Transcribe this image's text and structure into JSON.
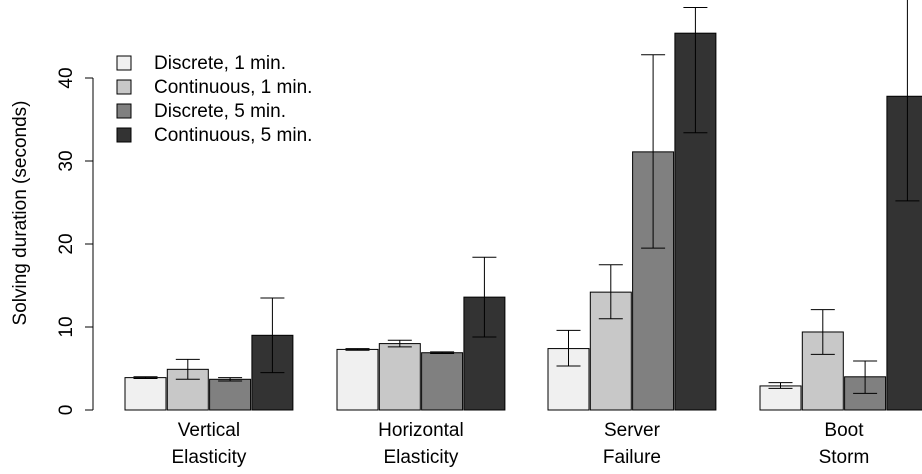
{
  "chart_data": {
    "type": "bar",
    "title": "",
    "ylabel": "Solving duration (seconds)",
    "xlabel": "",
    "ylim": [
      0,
      47
    ],
    "yticks": [
      0,
      10,
      20,
      30,
      40
    ],
    "grid": false,
    "legend_position": "top-left",
    "categories": [
      [
        "Vertical",
        "Elasticity"
      ],
      [
        "Horizontal",
        "Elasticity"
      ],
      [
        "Server",
        "Failure"
      ],
      [
        "Boot",
        "Storm"
      ]
    ],
    "series": [
      {
        "name": "Discrete, 1 min.",
        "color": "#f0f0f0",
        "values": [
          3.9,
          7.3,
          7.4,
          2.9
        ],
        "errors": [
          [
            3.8,
            4.0
          ],
          [
            7.2,
            7.4
          ],
          [
            5.3,
            9.6
          ],
          [
            2.6,
            3.3
          ]
        ]
      },
      {
        "name": "Continuous, 1 min.",
        "color": "#c8c8c8",
        "values": [
          4.9,
          8.0,
          14.2,
          9.4
        ],
        "errors": [
          [
            3.7,
            6.1
          ],
          [
            7.6,
            8.4
          ],
          [
            11.0,
            17.5
          ],
          [
            6.7,
            12.1
          ]
        ]
      },
      {
        "name": "Discrete, 5 min.",
        "color": "#808080",
        "values": [
          3.7,
          6.9,
          31.1,
          4.0
        ],
        "errors": [
          [
            3.5,
            3.9
          ],
          [
            6.8,
            7.0
          ],
          [
            19.5,
            42.8
          ],
          [
            2.0,
            5.9
          ]
        ]
      },
      {
        "name": "Continuous, 5 min.",
        "color": "#333333",
        "values": [
          9.0,
          13.6,
          45.4,
          37.8
        ],
        "errors": [
          [
            4.5,
            13.5
          ],
          [
            8.8,
            18.4
          ],
          [
            33.4,
            48.5
          ],
          [
            25.2,
            50.0
          ]
        ]
      }
    ]
  }
}
